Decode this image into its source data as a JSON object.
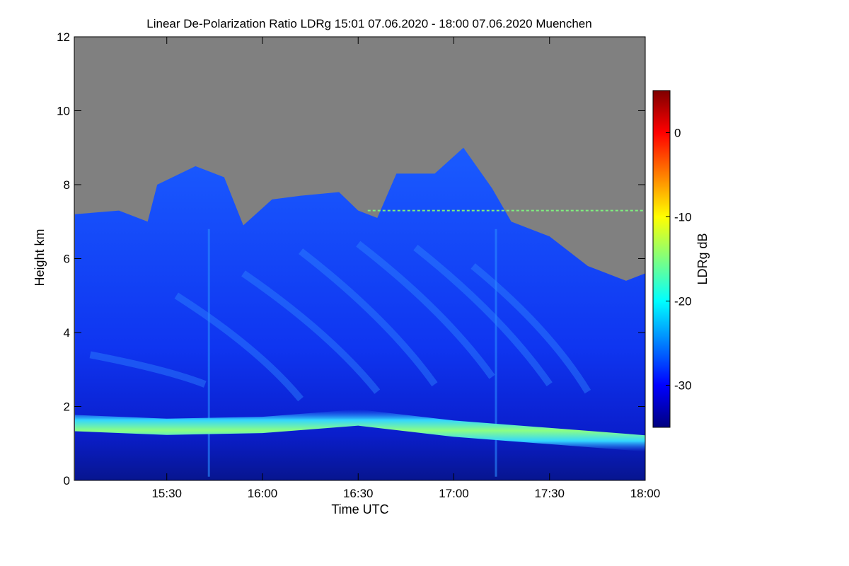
{
  "chart_data": {
    "type": "heatmap",
    "title": "Linear De-Polarization Ratio LDRg   15:01 07.06.2020 - 18:00 07.06.2020 Muenchen",
    "xlabel": "Time UTC",
    "ylabel": "Height km",
    "colorbar_label": "LDRg dB",
    "x_unit": "hours UTC",
    "xlim": [
      15.0167,
      18.0
    ],
    "ylim": [
      0,
      12
    ],
    "x_ticks": [
      {
        "value": 15.5,
        "label": "15:30"
      },
      {
        "value": 16.0,
        "label": "16:00"
      },
      {
        "value": 16.5,
        "label": "16:30"
      },
      {
        "value": 17.0,
        "label": "17:00"
      },
      {
        "value": 17.5,
        "label": "17:30"
      },
      {
        "value": 18.0,
        "label": "18:00"
      }
    ],
    "y_ticks": [
      {
        "value": 0,
        "label": "0"
      },
      {
        "value": 2,
        "label": "2"
      },
      {
        "value": 4,
        "label": "4"
      },
      {
        "value": 6,
        "label": "6"
      },
      {
        "value": 8,
        "label": "8"
      },
      {
        "value": 10,
        "label": "10"
      },
      {
        "value": 12,
        "label": "12"
      }
    ],
    "colorbar_range": [
      -35,
      5
    ],
    "colorbar_ticks": [
      {
        "value": 0,
        "label": "0"
      },
      {
        "value": -10,
        "label": "-10"
      },
      {
        "value": -20,
        "label": "-20"
      },
      {
        "value": -30,
        "label": "-30"
      }
    ],
    "no_data_color": "#808080",
    "colormap": [
      "#00007f",
      "#0000ff",
      "#007fff",
      "#00ffff",
      "#7fff7f",
      "#ffff00",
      "#ff7f00",
      "#ff0000",
      "#7f0000"
    ],
    "signal_top_km": [
      [
        15.02,
        7.2
      ],
      [
        15.25,
        7.3
      ],
      [
        15.4,
        7.0
      ],
      [
        15.45,
        8.0
      ],
      [
        15.65,
        8.5
      ],
      [
        15.8,
        8.2
      ],
      [
        15.9,
        6.9
      ],
      [
        16.05,
        7.6
      ],
      [
        16.2,
        7.7
      ],
      [
        16.4,
        7.8
      ],
      [
        16.5,
        7.3
      ],
      [
        16.6,
        7.1
      ],
      [
        16.7,
        8.3
      ],
      [
        16.9,
        8.3
      ],
      [
        17.05,
        9.0
      ],
      [
        17.2,
        7.9
      ],
      [
        17.3,
        7.0
      ],
      [
        17.5,
        6.6
      ],
      [
        17.7,
        5.8
      ],
      [
        17.9,
        5.4
      ],
      [
        18.0,
        5.6
      ]
    ],
    "background_ldr_db": -30,
    "features": [
      {
        "name": "boundary-layer top band",
        "ldr_db": -15,
        "path_km": [
          [
            15.02,
            1.55
          ],
          [
            15.5,
            1.45
          ],
          [
            16.0,
            1.5
          ],
          [
            16.5,
            1.7
          ],
          [
            17.0,
            1.4
          ],
          [
            17.5,
            1.2
          ],
          [
            18.0,
            1.0
          ]
        ]
      },
      {
        "name": "thin layer near 7.3 km",
        "ldr_db": -12,
        "height_km": 7.3,
        "x_range": [
          16.55,
          18.0
        ]
      }
    ]
  }
}
